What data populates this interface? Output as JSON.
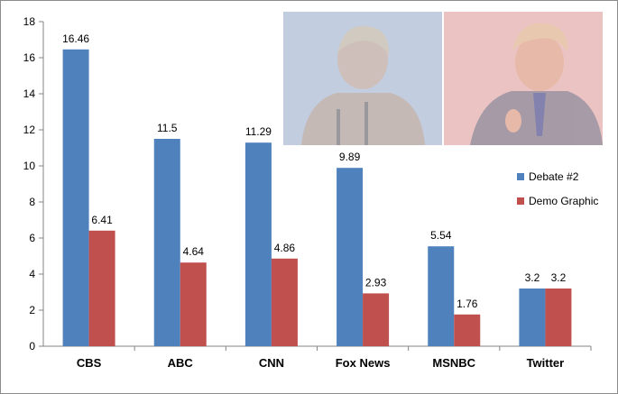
{
  "chart_data": {
    "type": "bar",
    "categories": [
      "CBS",
      "ABC",
      "CNN",
      "Fox News",
      "MSNBC",
      "Twitter"
    ],
    "series": [
      {
        "name": "Debate #2",
        "values": [
          16.46,
          11.5,
          11.29,
          9.89,
          5.54,
          3.2
        ],
        "color": "#4f81bd"
      },
      {
        "name": "Demo Graphic",
        "values": [
          6.41,
          4.64,
          4.86,
          2.93,
          1.76,
          3.2
        ],
        "color": "#c0504d"
      }
    ],
    "data_labels": [
      [
        "16.46",
        "11.5",
        "11.29",
        "9.89",
        "5.54",
        "3.2"
      ],
      [
        "6.41",
        "4.64",
        "4.86",
        "2.93",
        "1.76",
        "3.2"
      ]
    ],
    "ylim": [
      0,
      18
    ],
    "yticks": [
      0,
      2,
      4,
      6,
      8,
      10,
      12,
      14,
      16,
      18
    ],
    "grid": false,
    "legend_position": "right",
    "title": "",
    "xlabel": "",
    "ylabel": ""
  },
  "photos": [
    {
      "icon": "candidate-photo-left",
      "tint": "#b9c6dc"
    },
    {
      "icon": "candidate-photo-right",
      "tint": "#e3b4b4"
    }
  ]
}
